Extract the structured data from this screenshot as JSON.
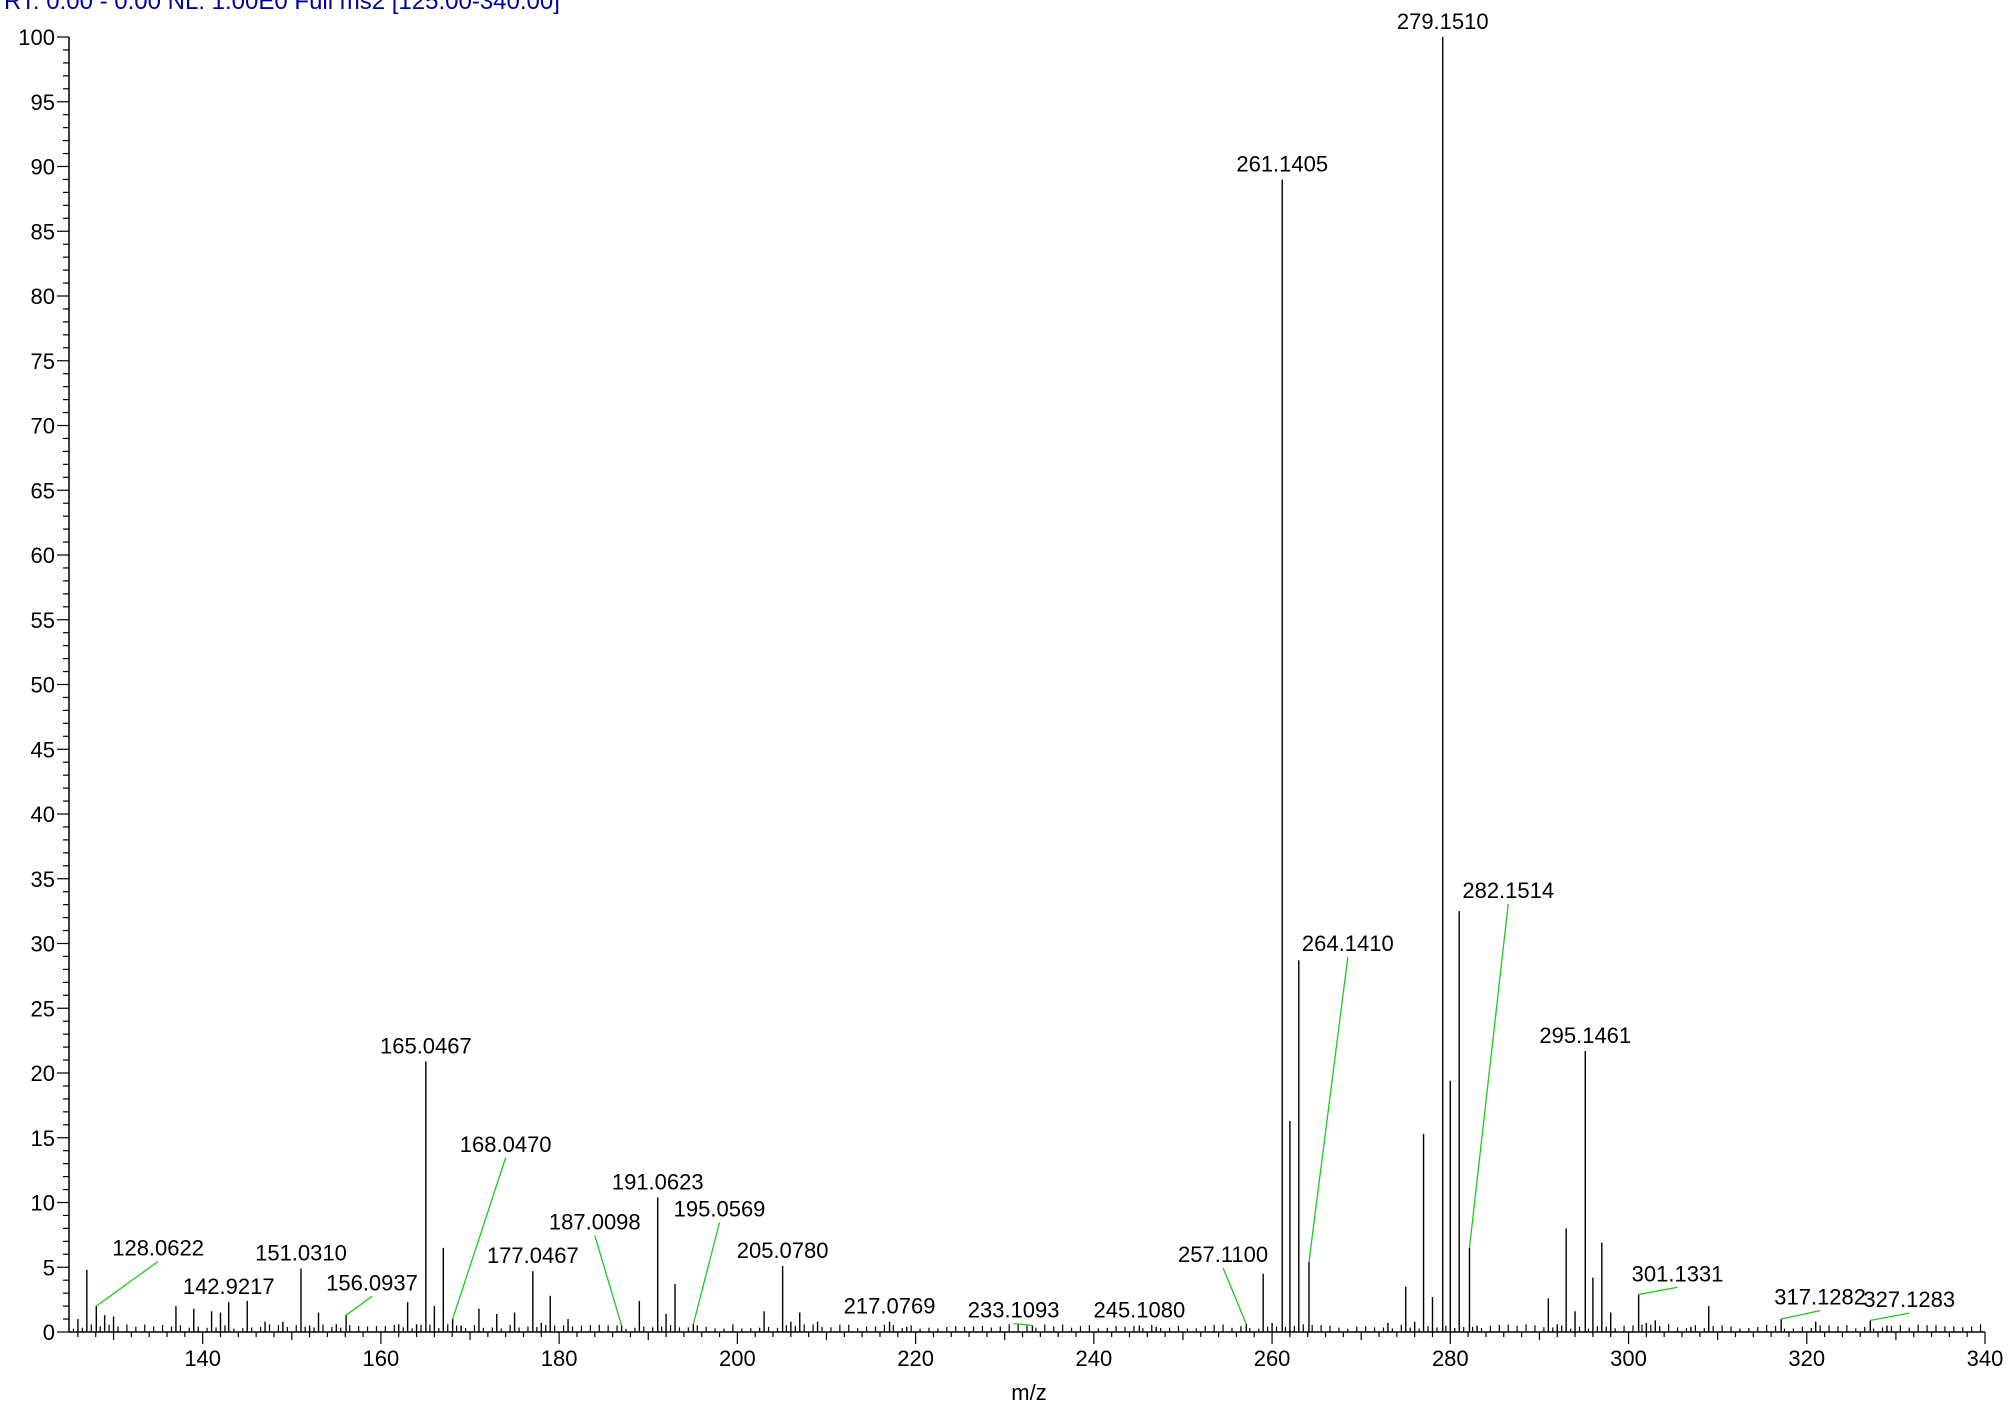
{
  "header": {
    "text": "RT: 0.00 - 0.00 NL: 1.00E0 Full ms2 [125.00-340.00]"
  },
  "chart_data": {
    "type": "bar",
    "title": "",
    "xlabel": "m/z",
    "ylabel": "",
    "xlim": [
      125,
      340
    ],
    "ylim": [
      0,
      100
    ],
    "x_ticks": [
      140,
      160,
      180,
      200,
      220,
      240,
      260,
      280,
      300,
      320,
      340
    ],
    "y_ticks": [
      0,
      5,
      10,
      15,
      20,
      25,
      30,
      35,
      40,
      45,
      50,
      55,
      60,
      65,
      70,
      75,
      80,
      85,
      90,
      95,
      100
    ],
    "colors": {
      "stick": "#000000",
      "leader": "#22c522",
      "header": "#0000a0"
    },
    "peaks": [
      [
        126.0,
        1.0
      ],
      [
        127.0,
        4.8
      ],
      [
        128.0622,
        2.0
      ],
      [
        129.0,
        1.3
      ],
      [
        130.0,
        1.2
      ],
      [
        137.0,
        2.0
      ],
      [
        139.0,
        1.8
      ],
      [
        141.0,
        1.6
      ],
      [
        142.0,
        1.5
      ],
      [
        142.9217,
        2.3
      ],
      [
        145.0,
        2.4
      ],
      [
        147.0,
        0.8
      ],
      [
        149.0,
        0.8
      ],
      [
        151.031,
        4.9
      ],
      [
        152.0,
        0.5
      ],
      [
        153.0,
        1.5
      ],
      [
        155.0,
        0.6
      ],
      [
        156.0937,
        1.3
      ],
      [
        162.0,
        0.6
      ],
      [
        163.0,
        2.3
      ],
      [
        164.0,
        0.6
      ],
      [
        165.0467,
        20.9
      ],
      [
        166.0,
        2.0
      ],
      [
        167.0,
        6.5
      ],
      [
        168.047,
        1.0
      ],
      [
        169.0,
        0.5
      ],
      [
        171.0,
        1.8
      ],
      [
        173.0,
        1.4
      ],
      [
        175.0,
        1.5
      ],
      [
        177.0467,
        4.7
      ],
      [
        178.0,
        0.7
      ],
      [
        179.0,
        2.8
      ],
      [
        181.0,
        1.0
      ],
      [
        187.0098,
        0.5
      ],
      [
        189.0,
        2.4
      ],
      [
        191.0623,
        10.4
      ],
      [
        192.0,
        1.4
      ],
      [
        193.0,
        3.7
      ],
      [
        195.0569,
        0.6
      ],
      [
        203.0,
        1.6
      ],
      [
        205.078,
        5.1
      ],
      [
        206.0,
        0.8
      ],
      [
        207.0,
        1.5
      ],
      [
        209.0,
        0.8
      ],
      [
        217.0769,
        0.8
      ],
      [
        219.0,
        0.4
      ],
      [
        233.1093,
        0.5
      ],
      [
        245.108,
        0.5
      ],
      [
        247.0,
        0.4
      ],
      [
        257.11,
        0.6
      ],
      [
        259.0,
        4.5
      ],
      [
        260.0,
        0.7
      ],
      [
        261.1405,
        89.0
      ],
      [
        262.0,
        16.3
      ],
      [
        263.0,
        28.7
      ],
      [
        264.141,
        5.4
      ],
      [
        273.0,
        0.7
      ],
      [
        275.0,
        3.5
      ],
      [
        276.0,
        0.8
      ],
      [
        277.0,
        15.3
      ],
      [
        278.0,
        2.7
      ],
      [
        279.151,
        100.0
      ],
      [
        280.0,
        19.4
      ],
      [
        281.0,
        32.5
      ],
      [
        282.1514,
        6.5
      ],
      [
        283.0,
        0.5
      ],
      [
        291.0,
        2.6
      ],
      [
        292.0,
        0.6
      ],
      [
        293.0,
        8.0
      ],
      [
        294.0,
        1.6
      ],
      [
        295.1461,
        21.7
      ],
      [
        296.0,
        4.2
      ],
      [
        297.0,
        6.9
      ],
      [
        298.0,
        1.5
      ],
      [
        301.1331,
        2.9
      ],
      [
        302.0,
        0.7
      ],
      [
        303.0,
        0.9
      ],
      [
        307.0,
        0.4
      ],
      [
        309.0,
        2.0
      ],
      [
        317.1282,
        1.0
      ],
      [
        321.0,
        0.8
      ],
      [
        327.1283,
        0.9
      ],
      [
        329.0,
        0.5
      ]
    ],
    "annotations": [
      {
        "label": "128.0622",
        "x": 128.0622,
        "y": 2.0,
        "label_x": 135.0,
        "label_y": 5.3,
        "leader": true
      },
      {
        "label": "142.9217",
        "x": 142.9217,
        "y": 2.3,
        "label_x": 142.9217,
        "label_y": 2.3,
        "leader": false
      },
      {
        "label": "151.0310",
        "x": 151.031,
        "y": 4.9,
        "label_x": 151.031,
        "label_y": 4.9,
        "leader": false
      },
      {
        "label": "156.0937",
        "x": 156.0937,
        "y": 1.3,
        "label_x": 159.0,
        "label_y": 2.6,
        "leader": true
      },
      {
        "label": "165.0467",
        "x": 165.0467,
        "y": 20.9,
        "label_x": 165.0467,
        "label_y": 20.9,
        "leader": false
      },
      {
        "label": "168.0470",
        "x": 168.047,
        "y": 1.0,
        "label_x": 174.0,
        "label_y": 13.3,
        "leader": true
      },
      {
        "label": "177.0467",
        "x": 177.0467,
        "y": 4.7,
        "label_x": 177.0467,
        "label_y": 4.7,
        "leader": false
      },
      {
        "label": "187.0098",
        "x": 187.0098,
        "y": 0.5,
        "label_x": 184.0,
        "label_y": 7.3,
        "leader": true
      },
      {
        "label": "191.0623",
        "x": 191.0623,
        "y": 10.4,
        "label_x": 191.0623,
        "label_y": 10.4,
        "leader": false
      },
      {
        "label": "195.0569",
        "x": 195.0569,
        "y": 0.6,
        "label_x": 198.0,
        "label_y": 8.3,
        "leader": true
      },
      {
        "label": "205.0780",
        "x": 205.078,
        "y": 5.1,
        "label_x": 205.078,
        "label_y": 5.1,
        "leader": false
      },
      {
        "label": "217.0769",
        "x": 217.0769,
        "y": 0.8,
        "label_x": 217.0769,
        "label_y": 0.8,
        "leader": false
      },
      {
        "label": "233.1093",
        "x": 233.1093,
        "y": 0.5,
        "label_x": 231.0,
        "label_y": 0.5,
        "leader": true
      },
      {
        "label": "245.1080",
        "x": 245.108,
        "y": 0.5,
        "label_x": 245.108,
        "label_y": 0.5,
        "leader": false
      },
      {
        "label": "257.1100",
        "x": 257.11,
        "y": 0.6,
        "label_x": 254.5,
        "label_y": 4.8,
        "leader": true
      },
      {
        "label": "261.1405",
        "x": 261.1405,
        "y": 89.0,
        "label_x": 261.1405,
        "label_y": 89.0,
        "leader": false
      },
      {
        "label": "264.1410",
        "x": 264.141,
        "y": 5.4,
        "label_x": 268.5,
        "label_y": 28.8,
        "leader": true
      },
      {
        "label": "279.1510",
        "x": 279.151,
        "y": 100.0,
        "label_x": 279.151,
        "label_y": 100.0,
        "leader": false
      },
      {
        "label": "282.1514",
        "x": 282.1514,
        "y": 6.5,
        "label_x": 286.5,
        "label_y": 32.9,
        "leader": true
      },
      {
        "label": "295.1461",
        "x": 295.1461,
        "y": 21.7,
        "label_x": 295.1461,
        "label_y": 21.7,
        "leader": false
      },
      {
        "label": "301.1331",
        "x": 301.1331,
        "y": 2.9,
        "label_x": 305.5,
        "label_y": 3.3,
        "leader": true
      },
      {
        "label": "317.1282",
        "x": 317.1282,
        "y": 1.0,
        "label_x": 321.5,
        "label_y": 1.5,
        "leader": true
      },
      {
        "label": "327.1283",
        "x": 327.1283,
        "y": 0.9,
        "label_x": 331.5,
        "label_y": 1.3,
        "leader": true
      }
    ]
  }
}
